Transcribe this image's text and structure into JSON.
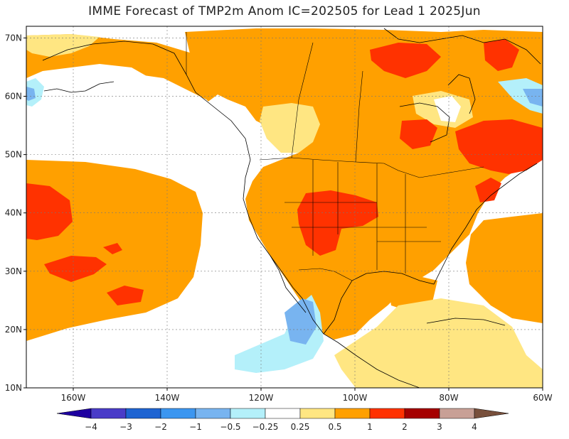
{
  "title": "IMME Forecast of TMP2m Anom IC=202505 for Lead 1 2025Jun",
  "map": {
    "lon_range": [
      -170,
      -60
    ],
    "lat_range": [
      10,
      72
    ],
    "lat_ticks": [
      {
        "value": 10,
        "label": "10N"
      },
      {
        "value": 20,
        "label": "20N"
      },
      {
        "value": 30,
        "label": "30N"
      },
      {
        "value": 40,
        "label": "40N"
      },
      {
        "value": 50,
        "label": "50N"
      },
      {
        "value": 60,
        "label": "60N"
      },
      {
        "value": 70,
        "label": "70N"
      }
    ],
    "lon_ticks": [
      {
        "value": -160,
        "label": "160W"
      },
      {
        "value": -140,
        "label": "140W"
      },
      {
        "value": -120,
        "label": "120W"
      },
      {
        "value": -100,
        "label": "100W"
      },
      {
        "value": -80,
        "label": "80W"
      },
      {
        "value": -60,
        "label": "60W"
      }
    ],
    "grid": true
  },
  "colorbar": {
    "labels": [
      "-4",
      "-3",
      "-2",
      "-1",
      "-0.5",
      "-0.25",
      "0.25",
      "0.5",
      "1",
      "2",
      "3",
      "4"
    ],
    "colors": [
      "#1e00a0",
      "#4a3cc8",
      "#1e64d2",
      "#3c96f0",
      "#78b4f0",
      "#b4f0fa",
      "#ffffff",
      "#ffe682",
      "#ffa000",
      "#ff3200",
      "#a50000",
      "#c8a096",
      "#78503c"
    ]
  }
}
